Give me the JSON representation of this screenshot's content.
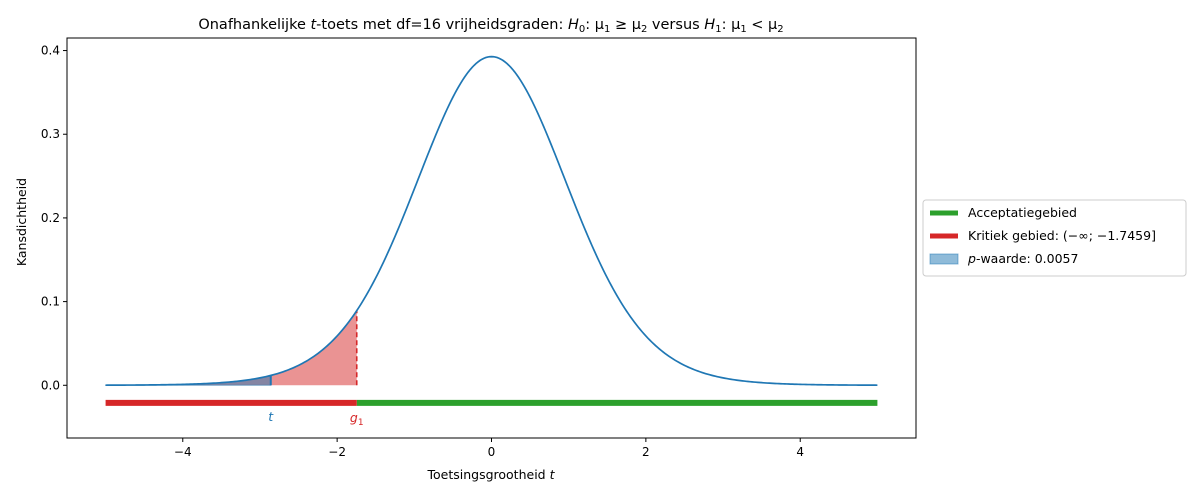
{
  "chart_data": {
    "type": "line",
    "title_parts": {
      "a": "Onafhankelijke ",
      "a_it": "t",
      "b": "-toets met df=16 vrijheidsgraden: ",
      "h0": "H",
      "h0_sub": "0",
      "h0_rest": ": μ",
      "h0_sub1": "1",
      "h0_rel": " ≥ μ",
      "h0_sub2": "2",
      "mid": " versus ",
      "h1": "H",
      "h1_sub": "1",
      "h1_rest": ": μ",
      "h1_sub1": "1",
      "h1_rel": " < μ",
      "h1_sub2": "2"
    },
    "xlabel_text": "Toetsingsgrootheid ",
    "xlabel_var": "t",
    "ylabel": "Kansdichtheid",
    "df": 16,
    "xlim": [
      -5.5,
      5.5
    ],
    "ylim": [
      -0.063,
      0.415
    ],
    "x_ticks": [
      -4,
      -2,
      0,
      2,
      4
    ],
    "x_tick_labels": [
      "−4",
      "−2",
      "0",
      "2",
      "4"
    ],
    "y_ticks": [
      0.0,
      0.1,
      0.2,
      0.3,
      0.4
    ],
    "y_tick_labels": [
      "0.0",
      "0.1",
      "0.2",
      "0.3",
      "0.4"
    ],
    "curve_range": [
      -5,
      5
    ],
    "t_value": -2.86,
    "critical_value": -1.7459,
    "region_bar_y": -0.021,
    "marker_t_label": "t",
    "marker_g_label": "g",
    "marker_g_sub": "1",
    "legend": [
      {
        "kind": "line",
        "color": "#2ca02c",
        "label": "Acceptatiegebied"
      },
      {
        "kind": "line",
        "color": "#d62728",
        "label": "Kritiek gebied: (−∞; −1.7459]"
      },
      {
        "kind": "patch",
        "color": "#1f77b4",
        "label_it": "p",
        "label": "-waarde: 0.0057"
      }
    ],
    "colors": {
      "curve": "#1f77b4",
      "critical": "#d62728",
      "accept": "#2ca02c",
      "pvalue": "#1f77b4"
    },
    "grid": false,
    "legend_position": "right-center"
  }
}
